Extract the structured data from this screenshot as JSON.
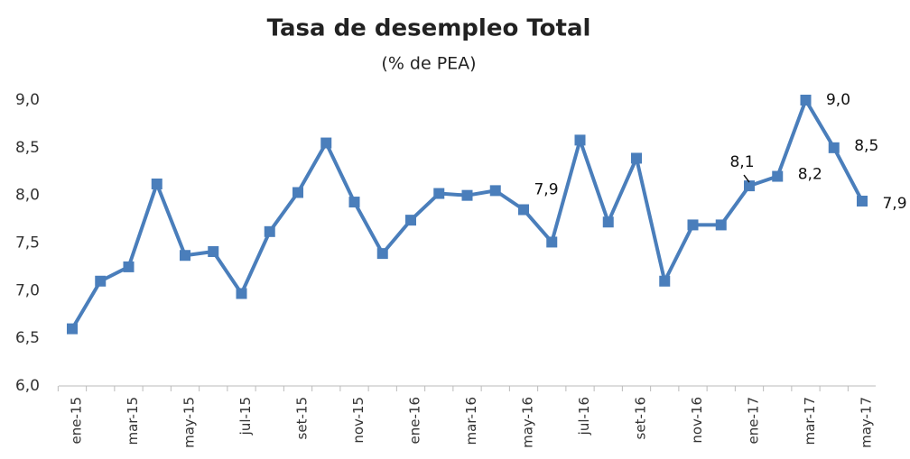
{
  "chart_data": {
    "type": "line",
    "title": "Tasa de desempleo Total",
    "subtitle": "(% de PEA)",
    "categories": [
      "ene-15",
      null,
      "mar-15",
      null,
      "may-15",
      null,
      "jul-15",
      null,
      "set-15",
      null,
      "nov-15",
      null,
      "ene-16",
      null,
      "mar-16",
      null,
      "may-16",
      null,
      "jul-16",
      null,
      "set-16",
      null,
      "nov-16",
      null,
      "ene-17",
      null,
      "mar-17",
      null,
      "may-17"
    ],
    "series": [
      {
        "name": "Tasa de desempleo",
        "color": "#4a7ebb",
        "values": [
          6.6,
          7.1,
          7.25,
          8.12,
          7.37,
          7.41,
          6.97,
          7.62,
          8.03,
          8.55,
          7.93,
          7.39,
          7.74,
          8.02,
          8.0,
          8.05,
          7.85,
          7.51,
          8.58,
          7.72,
          8.39,
          7.1,
          7.69,
          7.69,
          8.1,
          8.2,
          9.0,
          8.5,
          7.94
        ],
        "value_labels": [
          null,
          null,
          null,
          null,
          null,
          null,
          null,
          null,
          null,
          null,
          null,
          null,
          null,
          null,
          null,
          null,
          "7,9",
          null,
          null,
          null,
          null,
          null,
          null,
          null,
          "8,1",
          "8,2",
          "9,0",
          "8,5",
          "7,9"
        ]
      }
    ],
    "ylim": [
      6.0,
      9.0
    ],
    "yticks": [
      {
        "value": 6.0,
        "label": "6,0"
      },
      {
        "value": 6.5,
        "label": "6,5"
      },
      {
        "value": 7.0,
        "label": "7,0"
      },
      {
        "value": 7.5,
        "label": "7,5"
      },
      {
        "value": 8.0,
        "label": "8,0"
      },
      {
        "value": 8.5,
        "label": "8,5"
      },
      {
        "value": 9.0,
        "label": "9,0"
      }
    ],
    "grid": false
  }
}
